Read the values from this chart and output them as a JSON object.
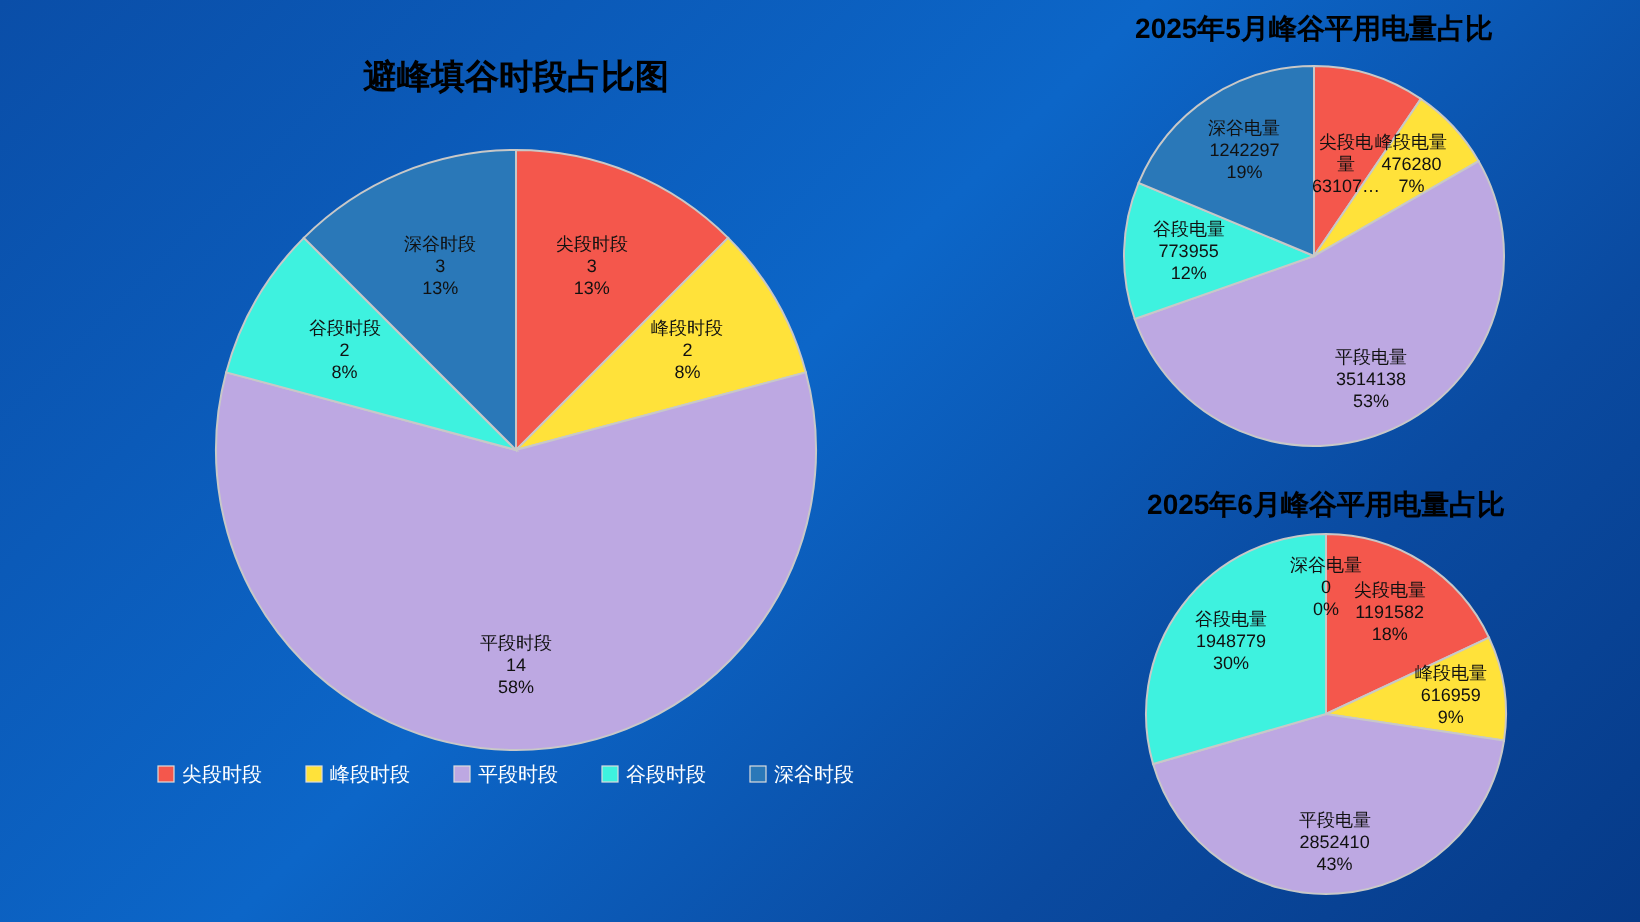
{
  "chart_data": [
    {
      "type": "pie",
      "title": "避峰填谷时段占比图",
      "legend": "bottom",
      "categories": [
        "尖段时段",
        "峰段时段",
        "平段时段",
        "谷段时段",
        "深谷时段"
      ],
      "values": [
        3,
        2,
        14,
        2,
        3
      ],
      "colors": [
        "#f4574c",
        "#ffe23a",
        "#bda8e2",
        "#3ef2df",
        "#2a78b8"
      ],
      "value_labels": [
        "3\n13%",
        "2\n8%",
        "14\n58%",
        "2\n8%",
        "3\n13%"
      ]
    },
    {
      "type": "pie",
      "title": "2025年5月峰谷平用电量占比",
      "categories": [
        "尖段电量",
        "峰段电量",
        "平段电量",
        "谷段电量",
        "深谷电量"
      ],
      "values": [
        631070,
        476280,
        3514138,
        773955,
        1242297
      ],
      "colors": [
        "#f4574c",
        "#ffe23a",
        "#bda8e2",
        "#3ef2df",
        "#2a78b8"
      ],
      "value_labels": [
        "63107…",
        "476280\n7%",
        "3514138\n53%",
        "773955\n12%",
        "1242297\n19%"
      ]
    },
    {
      "type": "pie",
      "title": "2025年6月峰谷平用电量占比",
      "categories": [
        "尖段电量",
        "峰段电量",
        "平段电量",
        "谷段电量",
        "深谷电量"
      ],
      "values": [
        1191582,
        616959,
        2852410,
        1948779,
        0
      ],
      "colors": [
        "#f4574c",
        "#ffe23a",
        "#bda8e2",
        "#3ef2df",
        "#2a78b8"
      ],
      "value_labels": [
        "1191582\n18%",
        "616959\n9%",
        "2852410\n43%",
        "1948779\n30%",
        "0\n0%"
      ]
    }
  ]
}
